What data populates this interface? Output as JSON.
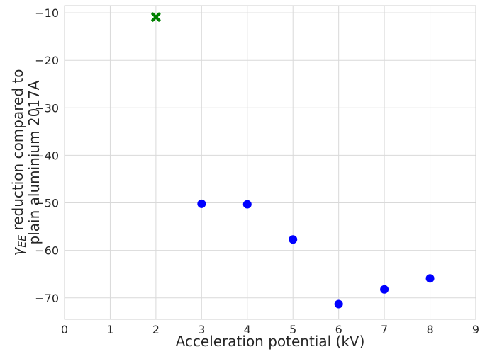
{
  "chart_data": {
    "type": "scatter",
    "title": "",
    "xlabel": "Acceleration potential (kV)",
    "ylabel_line1_prefix": "γ",
    "ylabel_line1_sub": "EE",
    "ylabel_line1_suffix": " reduction compared to",
    "ylabel_line2": "plain aluminium 2017A",
    "xlim": [
      0,
      9
    ],
    "ylim": [
      -74.5,
      -8.5
    ],
    "xticks": [
      0,
      1,
      2,
      3,
      4,
      5,
      6,
      7,
      8,
      9
    ],
    "yticks": [
      -70,
      -60,
      -50,
      -40,
      -30,
      -20,
      -10
    ],
    "xtick_labels": [
      "0",
      "1",
      "2",
      "3",
      "4",
      "5",
      "6",
      "7",
      "8",
      "9"
    ],
    "ytick_labels": [
      "−70",
      "−60",
      "−50",
      "−40",
      "−30",
      "−20",
      "−10"
    ],
    "grid": true,
    "series": [
      {
        "marker": "circle",
        "color": "#0000ff",
        "points": [
          {
            "x": 3,
            "y": -50.2
          },
          {
            "x": 4,
            "y": -50.3
          },
          {
            "x": 5,
            "y": -57.7
          },
          {
            "x": 6,
            "y": -71.3
          },
          {
            "x": 7,
            "y": -68.2
          },
          {
            "x": 8,
            "y": -65.9
          }
        ]
      },
      {
        "marker": "x",
        "color": "#008000",
        "points": [
          {
            "x": 2,
            "y": -10.9
          }
        ]
      }
    ]
  }
}
